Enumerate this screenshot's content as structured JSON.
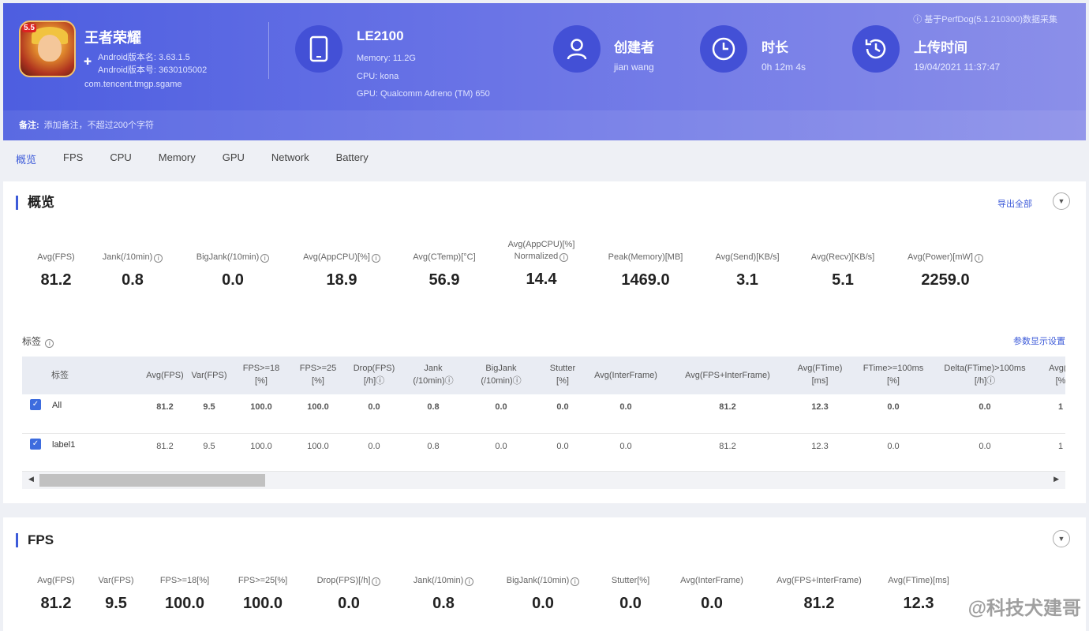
{
  "header": {
    "app": {
      "name": "王者荣耀",
      "version_name": "Android版本名: 3.63.1.5",
      "version_code": "Android版本号: 3630105002",
      "package": "com.tencent.tmgp.sgame",
      "icon_badge": "5.5"
    },
    "device": {
      "title": "LE2100",
      "memory": "Memory: 11.2G",
      "cpu": "CPU: kona",
      "gpu": "GPU: Qualcomm Adreno (TM) 650"
    },
    "creator": {
      "title": "创建者",
      "value": "jian wang"
    },
    "duration": {
      "title": "时长",
      "value": "0h 12m 4s"
    },
    "upload": {
      "title": "上传时间",
      "value": "19/04/2021 11:37:47"
    },
    "top_note": "ⓘ 基于PerfDog(5.1.210300)数据采集",
    "remark_label": "备注:",
    "remark_text": "添加备注，不超过200个字符",
    "icons": {
      "device": "phone-icon",
      "creator": "user-icon",
      "duration": "clock-icon",
      "upload": "history-icon"
    }
  },
  "tabs": [
    "概览",
    "FPS",
    "CPU",
    "Memory",
    "GPU",
    "Network",
    "Battery"
  ],
  "overview": {
    "title": "概览",
    "export_label": "导出全部",
    "metrics": [
      {
        "label": "Avg(FPS)",
        "value": "81.2",
        "info": false
      },
      {
        "label": "Jank(/10min)",
        "value": "0.8",
        "info": true
      },
      {
        "label": "BigJank(/10min)",
        "value": "0.0",
        "info": true
      },
      {
        "label": "Avg(AppCPU)[%]",
        "value": "18.9",
        "info": true
      },
      {
        "label": "Avg(CTemp)[°C]",
        "value": "56.9",
        "info": false
      },
      {
        "label": "Avg(AppCPU)[%] Normalized",
        "label_line1": "Avg(AppCPU)[%]",
        "label_line2": "Normalized",
        "value": "14.4",
        "info": true
      },
      {
        "label": "Peak(Memory)[MB]",
        "value": "1469.0",
        "info": false
      },
      {
        "label": "Avg(Send)[KB/s]",
        "value": "3.1",
        "info": false
      },
      {
        "label": "Avg(Recv)[KB/s]",
        "value": "5.1",
        "info": false
      },
      {
        "label": "Avg(Power)[mW]",
        "value": "2259.0",
        "info": true
      }
    ],
    "tag_label": "标签",
    "param_link": "参数显示设置",
    "table": {
      "columns": [
        {
          "l1": "标签",
          "l2": ""
        },
        {
          "l1": "Avg(FPS)",
          "l2": ""
        },
        {
          "l1": "Var(FPS)",
          "l2": ""
        },
        {
          "l1": "FPS>=18",
          "l2": "[%]"
        },
        {
          "l1": "FPS>=25",
          "l2": "[%]"
        },
        {
          "l1": "Drop(FPS)",
          "l2": "[/h]ⓘ"
        },
        {
          "l1": "Jank",
          "l2": "(/10min)ⓘ"
        },
        {
          "l1": "BigJank",
          "l2": "(/10min)ⓘ"
        },
        {
          "l1": "Stutter",
          "l2": "[%]"
        },
        {
          "l1": "Avg(InterFrame)",
          "l2": ""
        },
        {
          "l1": "Avg(FPS+InterFrame)",
          "l2": ""
        },
        {
          "l1": "Avg(FTime)",
          "l2": "[ms]"
        },
        {
          "l1": "FTime>=100ms",
          "l2": "[%]"
        },
        {
          "l1": "Delta(FTime)>100ms",
          "l2": "[/h]ⓘ"
        },
        {
          "l1": "Avg(A",
          "l2": "[%"
        }
      ],
      "rows": [
        {
          "name": "All",
          "checked": true,
          "values": [
            "81.2",
            "9.5",
            "100.0",
            "100.0",
            "0.0",
            "0.8",
            "0.0",
            "0.0",
            "0.0",
            "81.2",
            "12.3",
            "0.0",
            "0.0",
            "1"
          ]
        },
        {
          "name": "label1",
          "checked": true,
          "values": [
            "81.2",
            "9.5",
            "100.0",
            "100.0",
            "0.0",
            "0.8",
            "0.0",
            "0.0",
            "0.0",
            "81.2",
            "12.3",
            "0.0",
            "0.0",
            "1"
          ]
        }
      ]
    }
  },
  "fps_section": {
    "title": "FPS",
    "metrics": [
      {
        "label": "Avg(FPS)",
        "value": "81.2",
        "info": false
      },
      {
        "label": "Var(FPS)",
        "value": "9.5",
        "info": false
      },
      {
        "label": "FPS>=18[%]",
        "value": "100.0",
        "info": false
      },
      {
        "label": "FPS>=25[%]",
        "value": "100.0",
        "info": false
      },
      {
        "label": "Drop(FPS)[/h]",
        "value": "0.0",
        "info": true
      },
      {
        "label": "Jank(/10min)",
        "value": "0.8",
        "info": true
      },
      {
        "label": "BigJank(/10min)",
        "value": "0.0",
        "info": true
      },
      {
        "label": "Stutter[%]",
        "value": "0.0",
        "info": false
      },
      {
        "label": "Avg(InterFrame)",
        "value": "0.0",
        "info": false
      },
      {
        "label": "Avg(FPS+InterFrame)",
        "value": "81.2",
        "info": false
      },
      {
        "label": "Avg(FTime)[ms]",
        "value": "12.3",
        "info": false
      }
    ]
  },
  "watermark": "@科技犬建哥"
}
